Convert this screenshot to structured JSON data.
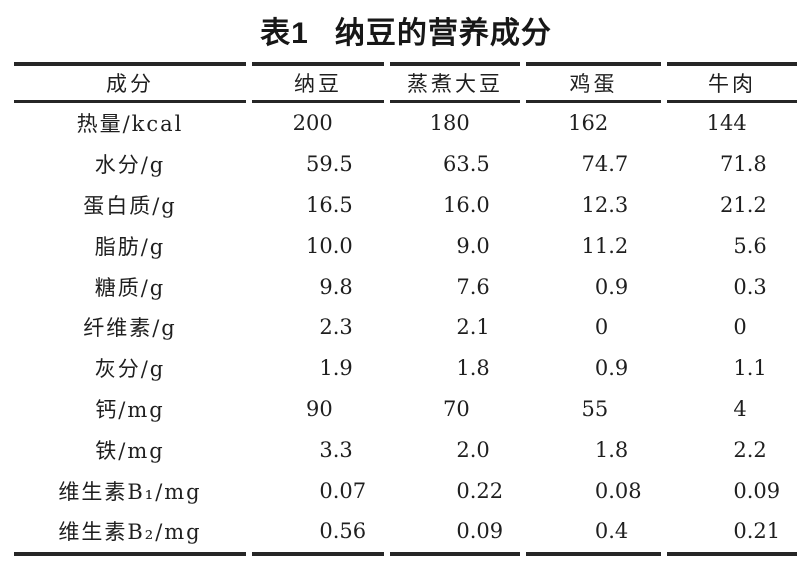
{
  "page": {
    "background": "#ffffff",
    "text_color": "#1f1f1f",
    "rule_color": "#262626"
  },
  "caption": {
    "tag": "表1",
    "text": "纳豆的营养成分"
  },
  "table": {
    "columns": [
      "成分",
      "纳豆",
      "蒸煮大豆",
      "鸡蛋",
      "牛肉"
    ],
    "rows": [
      {
        "label": "热量/kcal",
        "values": [
          "200",
          "180",
          "162",
          "144"
        ]
      },
      {
        "label": "水分/g",
        "values": [
          "59.5",
          "63.5",
          "74.7",
          "71.8"
        ]
      },
      {
        "label": "蛋白质/g",
        "values": [
          "16.5",
          "16.0",
          "12.3",
          "21.2"
        ]
      },
      {
        "label": "脂肪/g",
        "values": [
          "10.0",
          "9.0",
          "11.2",
          "5.6"
        ]
      },
      {
        "label": "糖质/g",
        "values": [
          "9.8",
          "7.6",
          "0.9",
          "0.3"
        ]
      },
      {
        "label": "纤维素/g",
        "values": [
          "2.3",
          "2.1",
          "0",
          "0"
        ]
      },
      {
        "label": "灰分/g",
        "values": [
          "1.9",
          "1.8",
          "0.9",
          "1.1"
        ]
      },
      {
        "label": "钙/mg",
        "values": [
          "90",
          "70",
          "55",
          "4"
        ]
      },
      {
        "label": "铁/mg",
        "values": [
          "3.3",
          "2.0",
          "1.8",
          "2.2"
        ]
      },
      {
        "label": "维生素B₁/mg",
        "values": [
          "0.07",
          "0.22",
          "0.08",
          "0.09"
        ]
      },
      {
        "label": "维生素B₂/mg",
        "values": [
          "0.56",
          "0.09",
          "0.4",
          "0.21"
        ]
      }
    ]
  }
}
